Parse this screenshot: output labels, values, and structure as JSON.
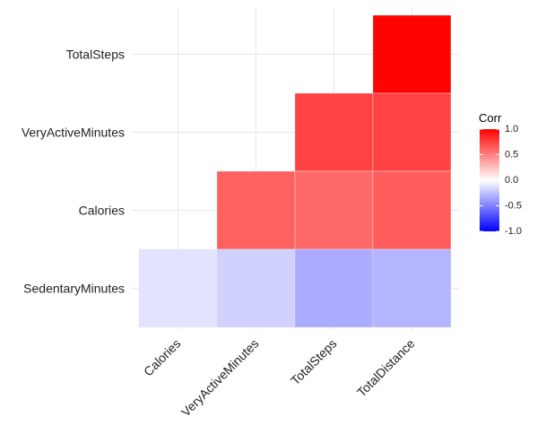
{
  "chart_data": {
    "type": "heatmap",
    "title": "",
    "xlabel": "",
    "ylabel": "",
    "x_categories": [
      "Calories",
      "VeryActiveMinutes",
      "TotalSteps",
      "TotalDistance"
    ],
    "y_categories": [
      "SedentaryMinutes",
      "Calories",
      "VeryActiveMinutes",
      "TotalSteps"
    ],
    "cells": [
      {
        "x": "TotalDistance",
        "y": "TotalSteps",
        "value": 0.99
      },
      {
        "x": "TotalSteps",
        "y": "VeryActiveMinutes",
        "value": 0.74
      },
      {
        "x": "TotalDistance",
        "y": "VeryActiveMinutes",
        "value": 0.74
      },
      {
        "x": "VeryActiveMinutes",
        "y": "Calories",
        "value": 0.62
      },
      {
        "x": "TotalSteps",
        "y": "Calories",
        "value": 0.59
      },
      {
        "x": "TotalDistance",
        "y": "Calories",
        "value": 0.64
      },
      {
        "x": "Calories",
        "y": "SedentaryMinutes",
        "value": -0.11
      },
      {
        "x": "VeryActiveMinutes",
        "y": "SedentaryMinutes",
        "value": -0.18
      },
      {
        "x": "TotalSteps",
        "y": "SedentaryMinutes",
        "value": -0.33
      },
      {
        "x": "TotalDistance",
        "y": "SedentaryMinutes",
        "value": -0.29
      }
    ],
    "color_scale": {
      "low": "#0000ff",
      "mid": "#ffffff",
      "high": "#ff0000",
      "limits": [
        -1,
        1
      ]
    },
    "legend": {
      "title": "Corr",
      "ticks": [
        1.0,
        0.5,
        0.0,
        -0.5,
        -1.0
      ],
      "tick_labels": [
        "1.0",
        "0.5",
        "0.0",
        "-0.5",
        "-1.0"
      ],
      "placement": "right"
    },
    "grid": true,
    "grid_color": "#ebebeb",
    "x_tick_rotation_deg": 45
  }
}
